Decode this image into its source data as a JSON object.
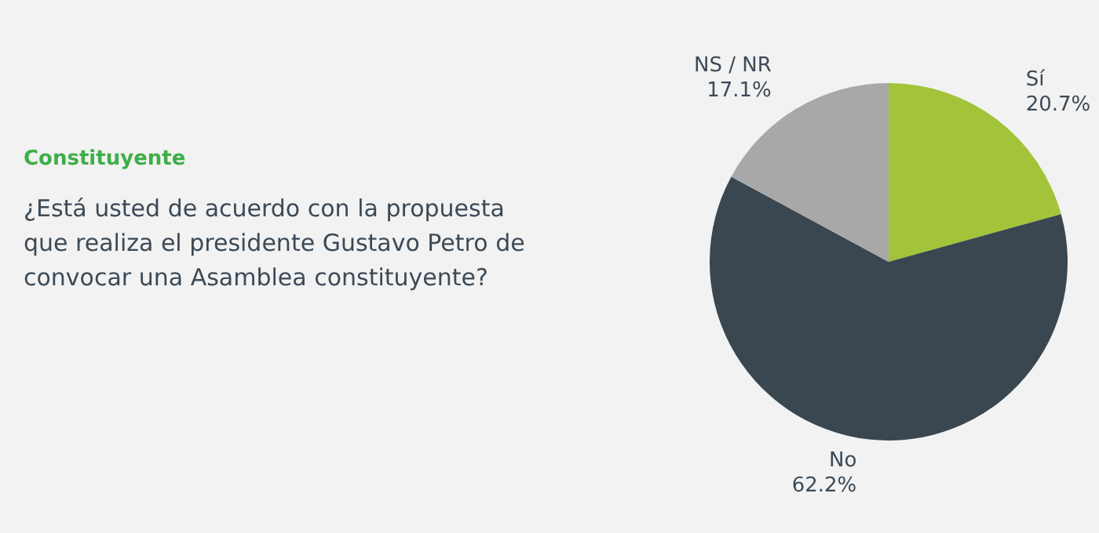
{
  "chart_data": {
    "type": "pie",
    "title": "Constituyente",
    "subtitle": "¿Está usted de acuerdo con la propuesta que realiza el presidente Gustavo Petro de convocar una Asamblea constituyente?",
    "categories": [
      "Sí",
      "No",
      "NS / NR"
    ],
    "values": [
      20.7,
      62.2,
      17.1
    ],
    "value_labels": [
      "20.7%",
      "62.2%",
      "17.1%"
    ],
    "colors": [
      "#a3c43a",
      "#3a4750",
      "#a8a8a8"
    ],
    "legend": false
  }
}
